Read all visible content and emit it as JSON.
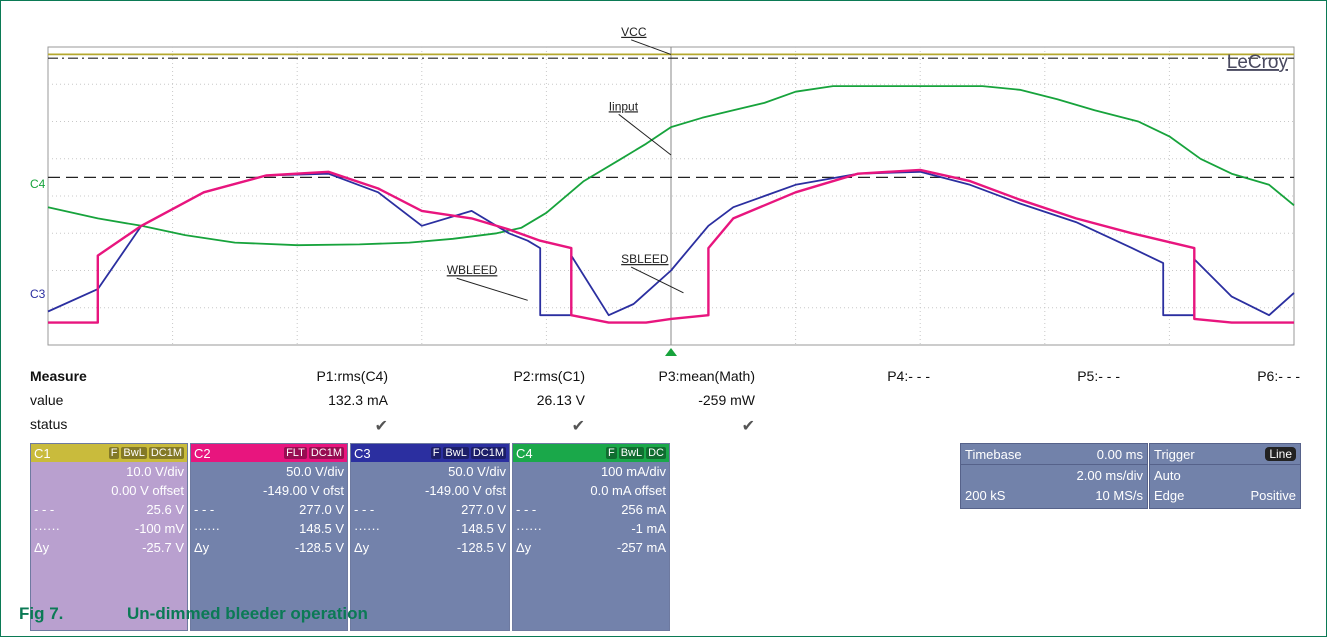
{
  "chart_data": {
    "type": "line",
    "brand": "LeCroy",
    "x_range": [
      0,
      20
    ],
    "grid_divisions_x": 10,
    "grid_divisions_y": 8,
    "channel_markers": [
      "C4",
      "C3"
    ],
    "series": [
      {
        "name": "VCC",
        "color": "#b5a82e",
        "x": [
          0,
          20
        ],
        "y": [
          7.8,
          7.8
        ]
      },
      {
        "name": "Iinput",
        "color": "#17a33c",
        "x": [
          0,
          0.8,
          1.5,
          2.2,
          3,
          4,
          5,
          5.8,
          6.5,
          7.2,
          7.6,
          8,
          8.6,
          9.2,
          9.6,
          10,
          10.5,
          11,
          11.5,
          12,
          12.6,
          13.2,
          14,
          15,
          15.6,
          16.2,
          16.8,
          17.5,
          18,
          18.5,
          19,
          19.6,
          20
        ],
        "y": [
          3.7,
          3.4,
          3.2,
          2.95,
          2.75,
          2.68,
          2.7,
          2.75,
          2.85,
          3.0,
          3.15,
          3.55,
          4.4,
          5.0,
          5.4,
          5.85,
          6.1,
          6.3,
          6.5,
          6.8,
          6.95,
          6.95,
          6.95,
          6.95,
          6.85,
          6.6,
          6.3,
          6.0,
          5.6,
          5.0,
          4.6,
          4.3,
          3.75
        ]
      },
      {
        "name": "WBLEED",
        "color": "#2b2fa0",
        "x": [
          0,
          0.8,
          1.5,
          2.5,
          3.5,
          4.5,
          5.3,
          6,
          6.8,
          7.4,
          7.7,
          7.9,
          7.9,
          8.4,
          8.4,
          9.0,
          9.4,
          10,
          10.6,
          11,
          12,
          13,
          14,
          14.8,
          15.6,
          16.5,
          17.4,
          17.9,
          17.9,
          18.4,
          18.4,
          19,
          19.6,
          20
        ],
        "y": [
          0.9,
          1.5,
          3.2,
          4.1,
          4.55,
          4.6,
          4.1,
          3.2,
          3.6,
          3.0,
          2.8,
          2.6,
          0.8,
          0.8,
          2.4,
          0.8,
          1.1,
          2.0,
          3.2,
          3.7,
          4.3,
          4.6,
          4.65,
          4.3,
          3.8,
          3.3,
          2.6,
          2.2,
          0.8,
          0.8,
          2.3,
          1.3,
          0.8,
          1.4
        ]
      },
      {
        "name": "SBLEED",
        "color": "#e8157e",
        "x": [
          0,
          0.8,
          0.8,
          1.5,
          2.5,
          3.5,
          4.5,
          5.3,
          6,
          6.8,
          7.4,
          7.9,
          8.4,
          8.4,
          9.0,
          9.6,
          10,
          10.6,
          10.6,
          11,
          12,
          13,
          14,
          14.8,
          15.6,
          16.5,
          17.4,
          17.9,
          18.4,
          18.4,
          19,
          19.6,
          20
        ],
        "y": [
          0.6,
          0.6,
          2.4,
          3.2,
          4.1,
          4.55,
          4.65,
          4.2,
          3.6,
          3.4,
          3.1,
          2.8,
          2.6,
          0.8,
          0.6,
          0.6,
          0.7,
          0.8,
          2.6,
          3.4,
          4.1,
          4.6,
          4.7,
          4.4,
          3.9,
          3.4,
          3.0,
          2.8,
          2.6,
          0.7,
          0.6,
          0.6,
          0.6
        ]
      }
    ],
    "reference_lines": [
      {
        "name": "VCC-ref",
        "y": 7.7,
        "color": "#222222",
        "style": "dash-dot"
      },
      {
        "name": "C4-ref",
        "y": 4.5,
        "color": "#222222",
        "style": "dash-tick"
      }
    ],
    "annotations": [
      {
        "text": "VCC",
        "target": "VCC"
      },
      {
        "text": "Iinput",
        "target": "Iinput"
      },
      {
        "text": "WBLEED",
        "target": "WBLEED"
      },
      {
        "text": "SBLEED",
        "target": "SBLEED"
      }
    ]
  },
  "measure": {
    "heading": "Measure",
    "row_value": "value",
    "row_status": "status",
    "params": [
      {
        "name": "P1:rms(C4)",
        "value": "132.3 mA",
        "status": "✔"
      },
      {
        "name": "P2:rms(C1)",
        "value": "26.13 V",
        "status": "✔"
      },
      {
        "name": "P3:mean(Math)",
        "value": "-259 mW",
        "status": "✔"
      },
      {
        "name": "P4:- - -",
        "value": "",
        "status": ""
      },
      {
        "name": "P5:- - -",
        "value": "",
        "status": ""
      },
      {
        "name": "P6:- - -",
        "value": "",
        "status": ""
      }
    ]
  },
  "channels": [
    {
      "label": "C1",
      "tags": [
        "F",
        "BwL",
        "DC1M"
      ],
      "header_color": "#c9bb3c",
      "body_color": "#b9a0cf",
      "scale": "10.0 V/div",
      "offset": "0.00 V offset",
      "dash1_value": "25.6 V",
      "dash2_value": "-100 mV",
      "delta_value": "-25.7 V"
    },
    {
      "label": "C2",
      "tags": [
        "FLT",
        "DC1M"
      ],
      "header_color": "#e8157e",
      "body_color": "#7382ab",
      "scale": "50.0 V/div",
      "offset": "-149.00 V ofst",
      "dash1_value": "277.0 V",
      "dash2_value": "148.5 V",
      "delta_value": "-128.5 V"
    },
    {
      "label": "C3",
      "tags": [
        "F",
        "BwL",
        "DC1M"
      ],
      "header_color": "#2b2fa0",
      "body_color": "#7382ab",
      "scale": "50.0 V/div",
      "offset": "-149.00 V ofst",
      "dash1_value": "277.0 V",
      "dash2_value": "148.5 V",
      "delta_value": "-128.5 V"
    },
    {
      "label": "C4",
      "tags": [
        "F",
        "BwL",
        "DC"
      ],
      "header_color": "#1aa84a",
      "body_color": "#7382ab",
      "scale": "100 mA/div",
      "offset": "0.0 mA offset",
      "dash1_value": "256 mA",
      "dash2_value": "-1 mA",
      "delta_value": "-257 mA"
    }
  ],
  "delta_label": "Δy",
  "timebase": {
    "label": "Timebase",
    "delay": "0.00 ms",
    "per_div": "2.00 ms/div",
    "samples": "200 kS",
    "rate": "10 MS/s"
  },
  "trigger": {
    "label": "Trigger",
    "source": "Line",
    "mode": "Auto",
    "type": "Edge",
    "slope": "Positive"
  },
  "caption": {
    "number": "Fig 7.",
    "title": "Un-dimmed bleeder operation"
  }
}
